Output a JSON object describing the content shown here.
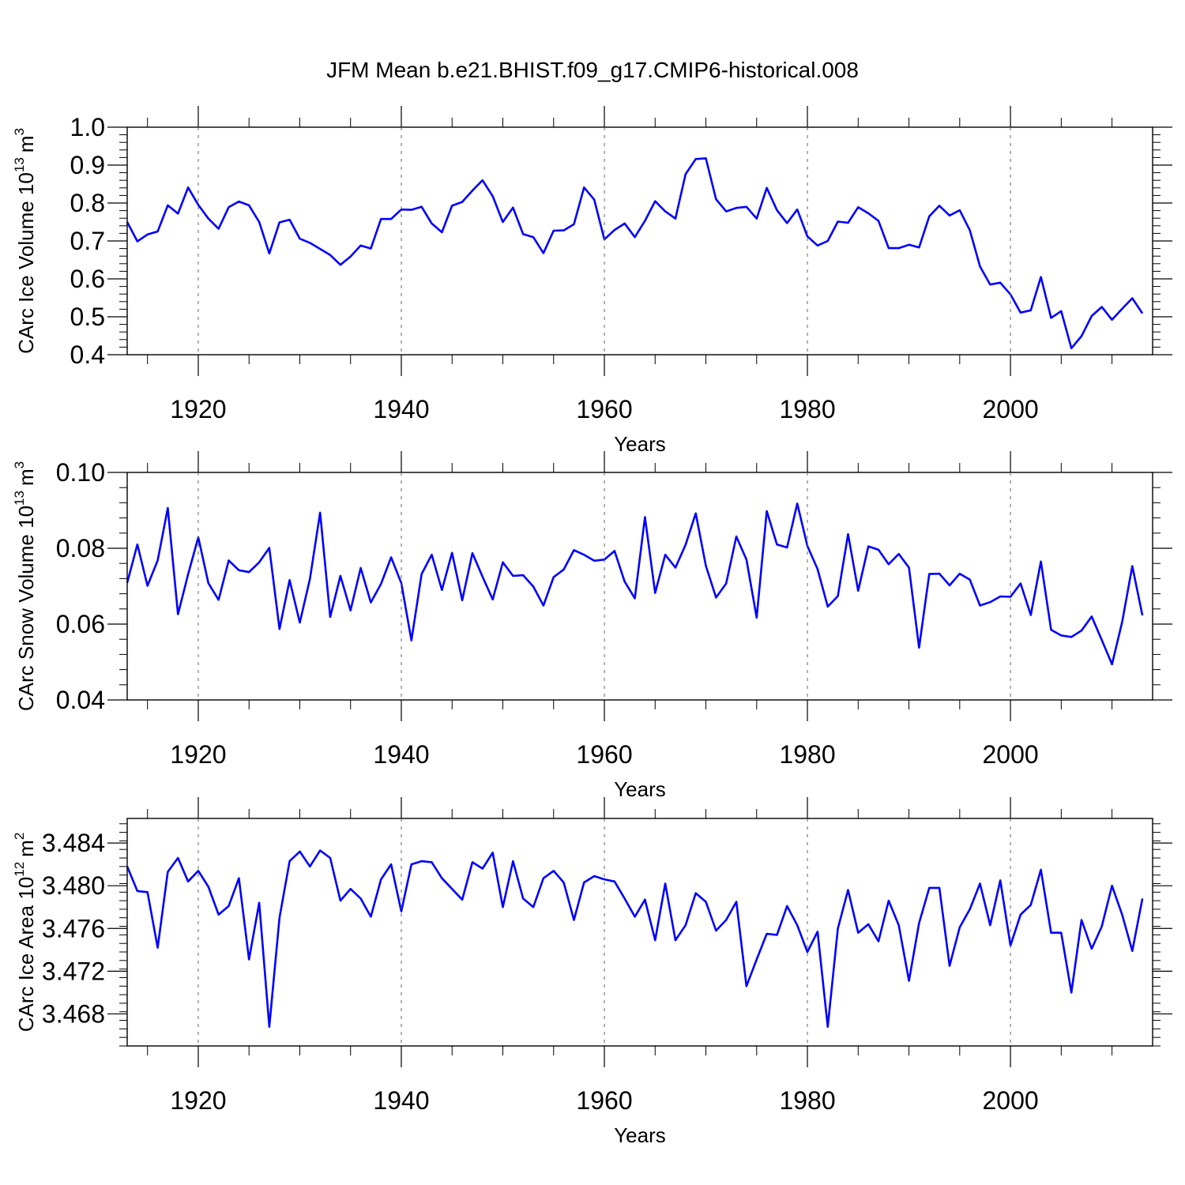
{
  "title": "JFM Mean b.e21.BHIST.f09_g17.CMIP6-historical.008",
  "colors": {
    "line": "#0000ff",
    "axis": "#000000",
    "grid": "#666666"
  },
  "chart_data": [
    {
      "type": "line",
      "xlabel": "Years",
      "ylabel": "CArc Ice Volume 10",
      "ylabel_sup": "13",
      "ylabel_unit": "m",
      "ylabel_unit_sup": "3",
      "xlim": [
        1913,
        2014
      ],
      "ylim": [
        0.4,
        1.0
      ],
      "x_ticks": [
        1920,
        1940,
        1960,
        1980,
        2000
      ],
      "y_ticks": [
        "0.4",
        "0.5",
        "0.6",
        "0.7",
        "0.8",
        "0.9",
        "1.0"
      ],
      "grid": "vertical dashed at major x ticks",
      "x_start": 1913,
      "values": [
        0.75,
        0.699,
        0.717,
        0.725,
        0.794,
        0.772,
        0.841,
        0.795,
        0.759,
        0.732,
        0.789,
        0.804,
        0.794,
        0.75,
        0.667,
        0.749,
        0.756,
        0.706,
        0.695,
        0.679,
        0.663,
        0.637,
        0.659,
        0.688,
        0.68,
        0.758,
        0.758,
        0.783,
        0.782,
        0.79,
        0.746,
        0.723,
        0.793,
        0.803,
        0.833,
        0.86,
        0.818,
        0.75,
        0.788,
        0.718,
        0.71,
        0.668,
        0.727,
        0.728,
        0.744,
        0.841,
        0.809,
        0.704,
        0.729,
        0.746,
        0.71,
        0.753,
        0.805,
        0.778,
        0.759,
        0.876,
        0.916,
        0.918,
        0.81,
        0.778,
        0.787,
        0.79,
        0.759,
        0.84,
        0.781,
        0.747,
        0.783,
        0.712,
        0.688,
        0.7,
        0.751,
        0.748,
        0.789,
        0.773,
        0.753,
        0.681,
        0.681,
        0.69,
        0.683,
        0.765,
        0.793,
        0.767,
        0.781,
        0.728,
        0.633,
        0.585,
        0.59,
        0.559,
        0.511,
        0.517,
        0.605,
        0.497,
        0.515,
        0.417,
        0.449,
        0.502,
        0.526,
        0.492,
        0.521,
        0.549,
        0.509
      ]
    },
    {
      "type": "line",
      "xlabel": "Years",
      "ylabel": "CArc Snow Volume 10",
      "ylabel_sup": "13",
      "ylabel_unit": "m",
      "ylabel_unit_sup": "3",
      "xlim": [
        1913,
        2014
      ],
      "ylim": [
        0.04,
        0.1
      ],
      "x_ticks": [
        1920,
        1940,
        1960,
        1980,
        2000
      ],
      "y_ticks": [
        "0.04",
        "0.06",
        "0.08",
        "0.10"
      ],
      "grid": "vertical dashed at major x ticks",
      "x_start": 1913,
      "values": [
        0.0709,
        0.081,
        0.0701,
        0.0768,
        0.0906,
        0.0626,
        0.0731,
        0.0829,
        0.0708,
        0.0664,
        0.0768,
        0.0742,
        0.0737,
        0.0763,
        0.0801,
        0.0587,
        0.0716,
        0.0604,
        0.0719,
        0.0894,
        0.0619,
        0.0727,
        0.0636,
        0.0748,
        0.0657,
        0.0706,
        0.0776,
        0.0708,
        0.0557,
        0.0732,
        0.0783,
        0.069,
        0.0788,
        0.0663,
        0.0787,
        0.0725,
        0.0665,
        0.0763,
        0.0727,
        0.0729,
        0.0699,
        0.0649,
        0.0724,
        0.0744,
        0.0795,
        0.0783,
        0.0767,
        0.077,
        0.0793,
        0.0712,
        0.0668,
        0.0882,
        0.0682,
        0.0783,
        0.0749,
        0.0809,
        0.0892,
        0.0754,
        0.067,
        0.0707,
        0.0831,
        0.077,
        0.0617,
        0.0898,
        0.081,
        0.0802,
        0.0918,
        0.0806,
        0.0745,
        0.0646,
        0.0674,
        0.0837,
        0.0688,
        0.0805,
        0.0796,
        0.0758,
        0.0785,
        0.0749,
        0.0538,
        0.0732,
        0.0733,
        0.0702,
        0.0733,
        0.0717,
        0.0649,
        0.0658,
        0.0673,
        0.0672,
        0.0707,
        0.0624,
        0.0765,
        0.0585,
        0.057,
        0.0566,
        0.0583,
        0.062,
        0.0558,
        0.0494,
        0.0605,
        0.0753,
        0.0623
      ]
    },
    {
      "type": "line",
      "xlabel": "Years",
      "ylabel": "CArc Ice Area 10",
      "ylabel_sup": "12",
      "ylabel_unit": "m",
      "ylabel_unit_sup": "2",
      "xlim": [
        1913,
        2014
      ],
      "ylim": [
        3.465,
        3.4863
      ],
      "x_ticks": [
        1920,
        1940,
        1960,
        1980,
        2000
      ],
      "y_ticks": [
        "3.468",
        "3.472",
        "3.476",
        "3.480",
        "3.484"
      ],
      "grid": "vertical dashed at major x ticks",
      "x_start": 1913,
      "values": [
        3.4818,
        3.4795,
        3.4794,
        3.4742,
        3.4813,
        3.4826,
        3.4804,
        3.4814,
        3.4799,
        3.4773,
        3.4781,
        3.4807,
        3.4731,
        3.4784,
        3.4668,
        3.477,
        3.4823,
        3.4832,
        3.4818,
        3.4833,
        3.4826,
        3.4786,
        3.4797,
        3.4788,
        3.4771,
        3.4806,
        3.482,
        3.4776,
        3.482,
        3.4823,
        3.4822,
        3.4807,
        3.4797,
        3.4787,
        3.4822,
        3.4816,
        3.4831,
        3.478,
        3.4823,
        3.4788,
        3.478,
        3.4807,
        3.4814,
        3.4803,
        3.4768,
        3.4803,
        3.4809,
        3.4806,
        3.4804,
        3.4788,
        3.4771,
        3.4787,
        3.4749,
        3.4802,
        3.4749,
        3.4763,
        3.4793,
        3.4785,
        3.4758,
        3.4768,
        3.4785,
        3.4706,
        3.4731,
        3.4755,
        3.4754,
        3.4781,
        3.4763,
        3.4738,
        3.4757,
        3.4668,
        3.476,
        3.4796,
        3.4756,
        3.4764,
        3.4748,
        3.4786,
        3.4763,
        3.4711,
        3.4765,
        3.4798,
        3.4798,
        3.4725,
        3.4761,
        3.4778,
        3.4802,
        3.4763,
        3.4805,
        3.4744,
        3.4773,
        3.4782,
        3.4815,
        3.4756,
        3.4756,
        3.47,
        3.4768,
        3.4741,
        3.4762,
        3.48,
        3.4773,
        3.4739,
        3.4788
      ]
    }
  ]
}
